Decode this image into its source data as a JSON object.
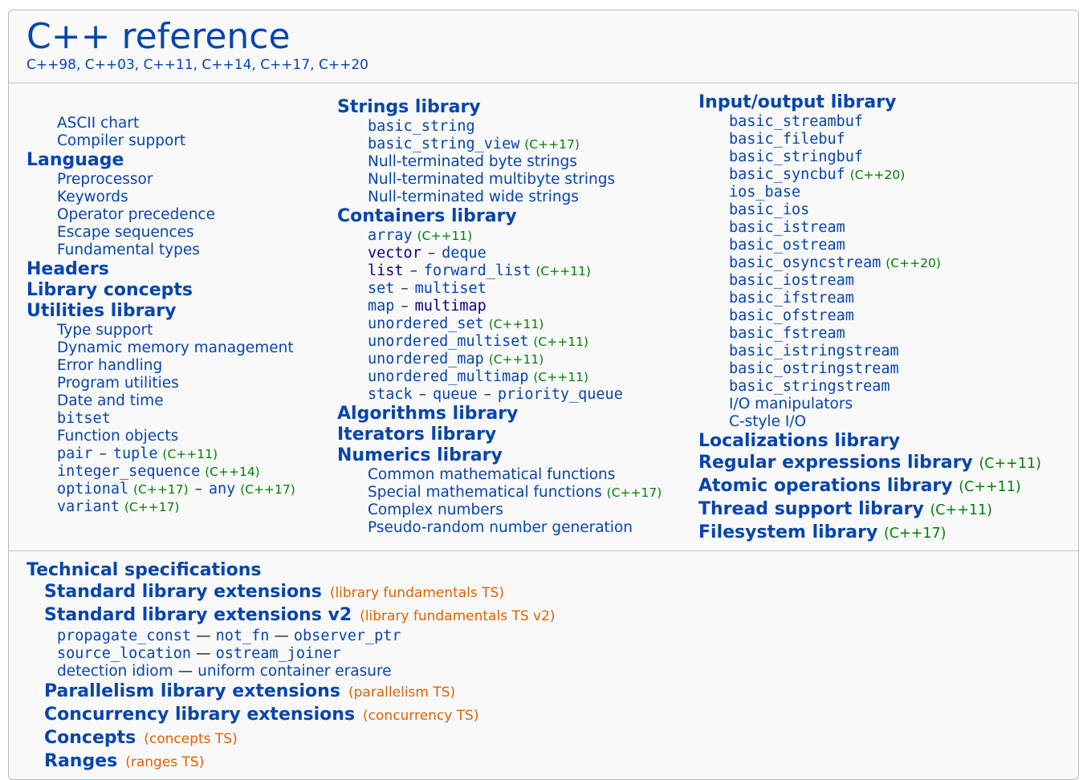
{
  "header": {
    "title": "C++ reference",
    "versions": "C++98, C++03, C++11, C++14, C++17, C++20"
  },
  "col1": {
    "top_items": [
      "ASCII chart",
      "Compiler support"
    ],
    "language": {
      "heading": "Language",
      "items": [
        "Preprocessor",
        "Keywords",
        "Operator precedence",
        "Escape sequences",
        "Fundamental types"
      ]
    },
    "headers": "Headers",
    "library_concepts": "Library concepts",
    "utilities": {
      "heading": "Utilities library",
      "items": [
        "Type support",
        "Dynamic memory management",
        "Error handling",
        "Program utilities",
        "Date and time"
      ],
      "bitset": "bitset",
      "function_objects": "Function objects",
      "pair": "pair",
      "tuple": "tuple",
      "tuple_ver": "(C++11)",
      "integer_sequence": "integer_sequence",
      "integer_sequence_ver": "(C++14)",
      "optional": "optional",
      "optional_ver": "(C++17)",
      "any": "any",
      "any_ver": "(C++17)",
      "variant": "variant",
      "variant_ver": "(C++17)"
    }
  },
  "col2": {
    "strings": {
      "heading": "Strings library",
      "basic_string": "basic_string",
      "basic_string_view": "basic_string_view",
      "basic_string_view_ver": "(C++17)",
      "items": [
        "Null-terminated byte strings",
        "Null-terminated multibyte strings",
        "Null-terminated wide strings"
      ]
    },
    "containers": {
      "heading": "Containers library",
      "array": "array",
      "array_ver": "(C++11)",
      "vector": "vector",
      "deque": "deque",
      "list": "list",
      "forward_list": "forward_list",
      "forward_list_ver": "(C++11)",
      "set": "set",
      "multiset": "multiset",
      "map": "map",
      "multimap": "multimap",
      "unordered_set": "unordered_set",
      "unordered_set_ver": "(C++11)",
      "unordered_multiset": "unordered_multiset",
      "unordered_multiset_ver": "(C++11)",
      "unordered_map": "unordered_map",
      "unordered_map_ver": "(C++11)",
      "unordered_multimap": "unordered_multimap",
      "unordered_multimap_ver": "(C++11)",
      "stack": "stack",
      "queue": "queue",
      "priority_queue": "priority_queue"
    },
    "algorithms": "Algorithms library",
    "iterators": "Iterators library",
    "numerics": {
      "heading": "Numerics library",
      "common_math": "Common mathematical functions",
      "special_math": "Special mathematical functions",
      "special_math_ver": "(C++17)",
      "complex": "Complex numbers",
      "random": "Pseudo-random number generation"
    },
    "dash": "–"
  },
  "col3": {
    "io": {
      "heading": "Input/output library",
      "items": [
        "basic_streambuf",
        "basic_filebuf",
        "basic_stringbuf"
      ],
      "basic_syncbuf": "basic_syncbuf",
      "basic_syncbuf_ver": "(C++20)",
      "items2": [
        "ios_base",
        "basic_ios",
        "basic_istream",
        "basic_ostream"
      ],
      "basic_osyncstream": "basic_osyncstream",
      "basic_osyncstream_ver": "(C++20)",
      "items3": [
        "basic_iostream",
        "basic_ifstream",
        "basic_ofstream",
        "basic_fstream",
        "basic_istringstream",
        "basic_ostringstream",
        "basic_stringstream"
      ],
      "io_manipulators": "I/O manipulators",
      "c_style_io": "C-style I/O"
    },
    "localizations": "Localizations library",
    "regex": "Regular expressions library",
    "regex_ver": "(C++11)",
    "atomic": "Atomic operations library",
    "atomic_ver": "(C++11)",
    "thread": "Thread support library",
    "thread_ver": "(C++11)",
    "filesystem": "Filesystem library",
    "filesystem_ver": "(C++17)"
  },
  "ts": {
    "heading": "Technical specifications",
    "std_ext": "Standard library extensions",
    "std_ext_note": "(library fundamentals TS)",
    "std_ext_v2": "Standard library extensions v2",
    "std_ext_v2_note": "(library fundamentals TS v2)",
    "propagate_const": "propagate_const",
    "not_fn": "not_fn",
    "observer_ptr": "observer_ptr",
    "source_location": "source_location",
    "ostream_joiner": "ostream_joiner",
    "detection_idiom": "detection idiom",
    "uniform_erasure": "uniform container erasure",
    "parallelism": "Parallelism library extensions",
    "parallelism_note": "(parallelism TS)",
    "concurrency": "Concurrency library extensions",
    "concurrency_note": "(concurrency TS)",
    "concepts": "Concepts",
    "concepts_note": "(concepts TS)",
    "ranges": "Ranges",
    "ranges_note": "(ranges TS)",
    "em_dash": "—"
  }
}
